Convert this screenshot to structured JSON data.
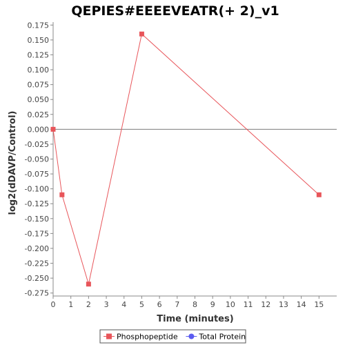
{
  "chart_data": {
    "type": "line",
    "title": "QEPIES#EEEEVEATR(+ 2)_v1",
    "xlabel": "Time (minutes)",
    "ylabel": "log2(dDAVP/Control)",
    "xlim": [
      0,
      16
    ],
    "ylim": [
      -0.28,
      0.18
    ],
    "x_ticks": [
      0,
      1,
      2,
      3,
      4,
      5,
      6,
      7,
      8,
      9,
      10,
      11,
      12,
      13,
      14,
      15
    ],
    "y_ticks": [
      0.175,
      0.15,
      0.125,
      0.1,
      0.075,
      0.05,
      0.025,
      0.0,
      -0.025,
      -0.05,
      -0.075,
      -0.1,
      -0.125,
      -0.15,
      -0.175,
      -0.2,
      -0.225,
      -0.25,
      -0.275
    ],
    "y_tick_labels": [
      "0.175",
      "0.150",
      "0.125",
      "0.100",
      "0.075",
      "0.050",
      "0.025",
      "0.000",
      "-0.025",
      "-0.050",
      "-0.075",
      "-0.100",
      "-0.125",
      "-0.150",
      "-0.175",
      "-0.200",
      "-0.225",
      "-0.250",
      "-0.275"
    ],
    "series": [
      {
        "name": "Phosphopeptide",
        "color": "#e8555a",
        "marker": "square",
        "x": [
          0,
          0.5,
          2,
          5,
          15
        ],
        "y": [
          0.0,
          -0.11,
          -0.26,
          0.16,
          -0.11
        ]
      },
      {
        "name": "Total Protein",
        "color": "#5b5bf0",
        "marker": "circle",
        "x": [],
        "y": []
      }
    ],
    "zero_line": true,
    "grid": false,
    "legend_position": "bottom"
  }
}
